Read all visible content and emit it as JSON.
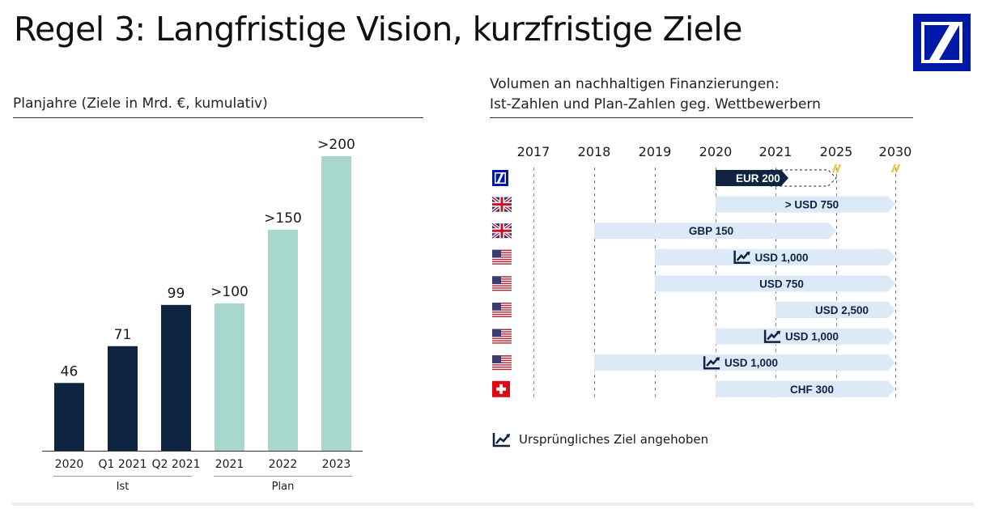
{
  "title": "Regel 3: Langfristige Vision, kurzfristige Ziele",
  "left_panel": {
    "heading": "Planjahre (Ziele in Mrd. €, kumulativ)",
    "group_labels": [
      "Ist",
      "Plan"
    ]
  },
  "right_panel": {
    "heading_line1": "Volumen an nachhaltigen Finanzierungen:",
    "heading_line2": "Ist-Zahlen und Plan-Zahlen geg. Wettbewerbern",
    "legend": "Ursprüngliches Ziel angehoben"
  },
  "colors": {
    "ist": "#0f2440",
    "plan": "#a8d8cd",
    "pill_light": "#dce9f7",
    "pill_dark": "#0f2440",
    "db_blue": "#0018a8",
    "hatch": "#e8c84a"
  },
  "chart_data": [
    {
      "type": "bar",
      "title": "Planjahre (Ziele in Mrd. €, kumulativ)",
      "categories": [
        "2020",
        "Q1 2021",
        "Q2 2021",
        "2021",
        "2022",
        "2023"
      ],
      "values": [
        46,
        71,
        99,
        100,
        150,
        200
      ],
      "value_labels": [
        "46",
        "71",
        "99",
        ">100",
        ">150",
        ">200"
      ],
      "groups": [
        "Ist",
        "Ist",
        "Ist",
        "Plan",
        "Plan",
        "Plan"
      ],
      "ylim": [
        0,
        200
      ]
    },
    {
      "type": "timeline",
      "x_ticks": [
        "2017",
        "2018",
        "2019",
        "2020",
        "2021",
        "2025",
        "2030"
      ],
      "rows": [
        {
          "flag": "db-logo-icon",
          "label": "EUR 200",
          "start": "2020",
          "end": "2021",
          "dashed_end": "2025",
          "style": "dark",
          "raised": false
        },
        {
          "flag": "uk-flag-icon",
          "label": "> USD 750",
          "start": "2020",
          "end": "2030",
          "style": "light",
          "raised": false
        },
        {
          "flag": "uk-flag-icon",
          "label": "GBP 150",
          "start": "2018",
          "end": "2025",
          "style": "light",
          "raised": false
        },
        {
          "flag": "us-flag-icon",
          "label": "USD 1,000",
          "start": "2019",
          "end": "2030",
          "style": "light",
          "raised": true
        },
        {
          "flag": "us-flag-icon",
          "label": "USD 750",
          "start": "2019",
          "end": "2030",
          "style": "light",
          "raised": false
        },
        {
          "flag": "us-flag-icon",
          "label": "USD 2,500",
          "start": "2021",
          "end": "2030",
          "style": "light",
          "raised": false
        },
        {
          "flag": "us-flag-icon",
          "label": "USD 1,000",
          "start": "2020",
          "end": "2030",
          "style": "light",
          "raised": true
        },
        {
          "flag": "us-flag-icon",
          "label": "USD 1,000",
          "start": "2018",
          "end": "2030",
          "style": "light",
          "raised": true
        },
        {
          "flag": "swiss-flag-icon",
          "label": "CHF 300",
          "start": "2020",
          "end": "2030",
          "style": "light",
          "raised": false
        }
      ]
    }
  ]
}
